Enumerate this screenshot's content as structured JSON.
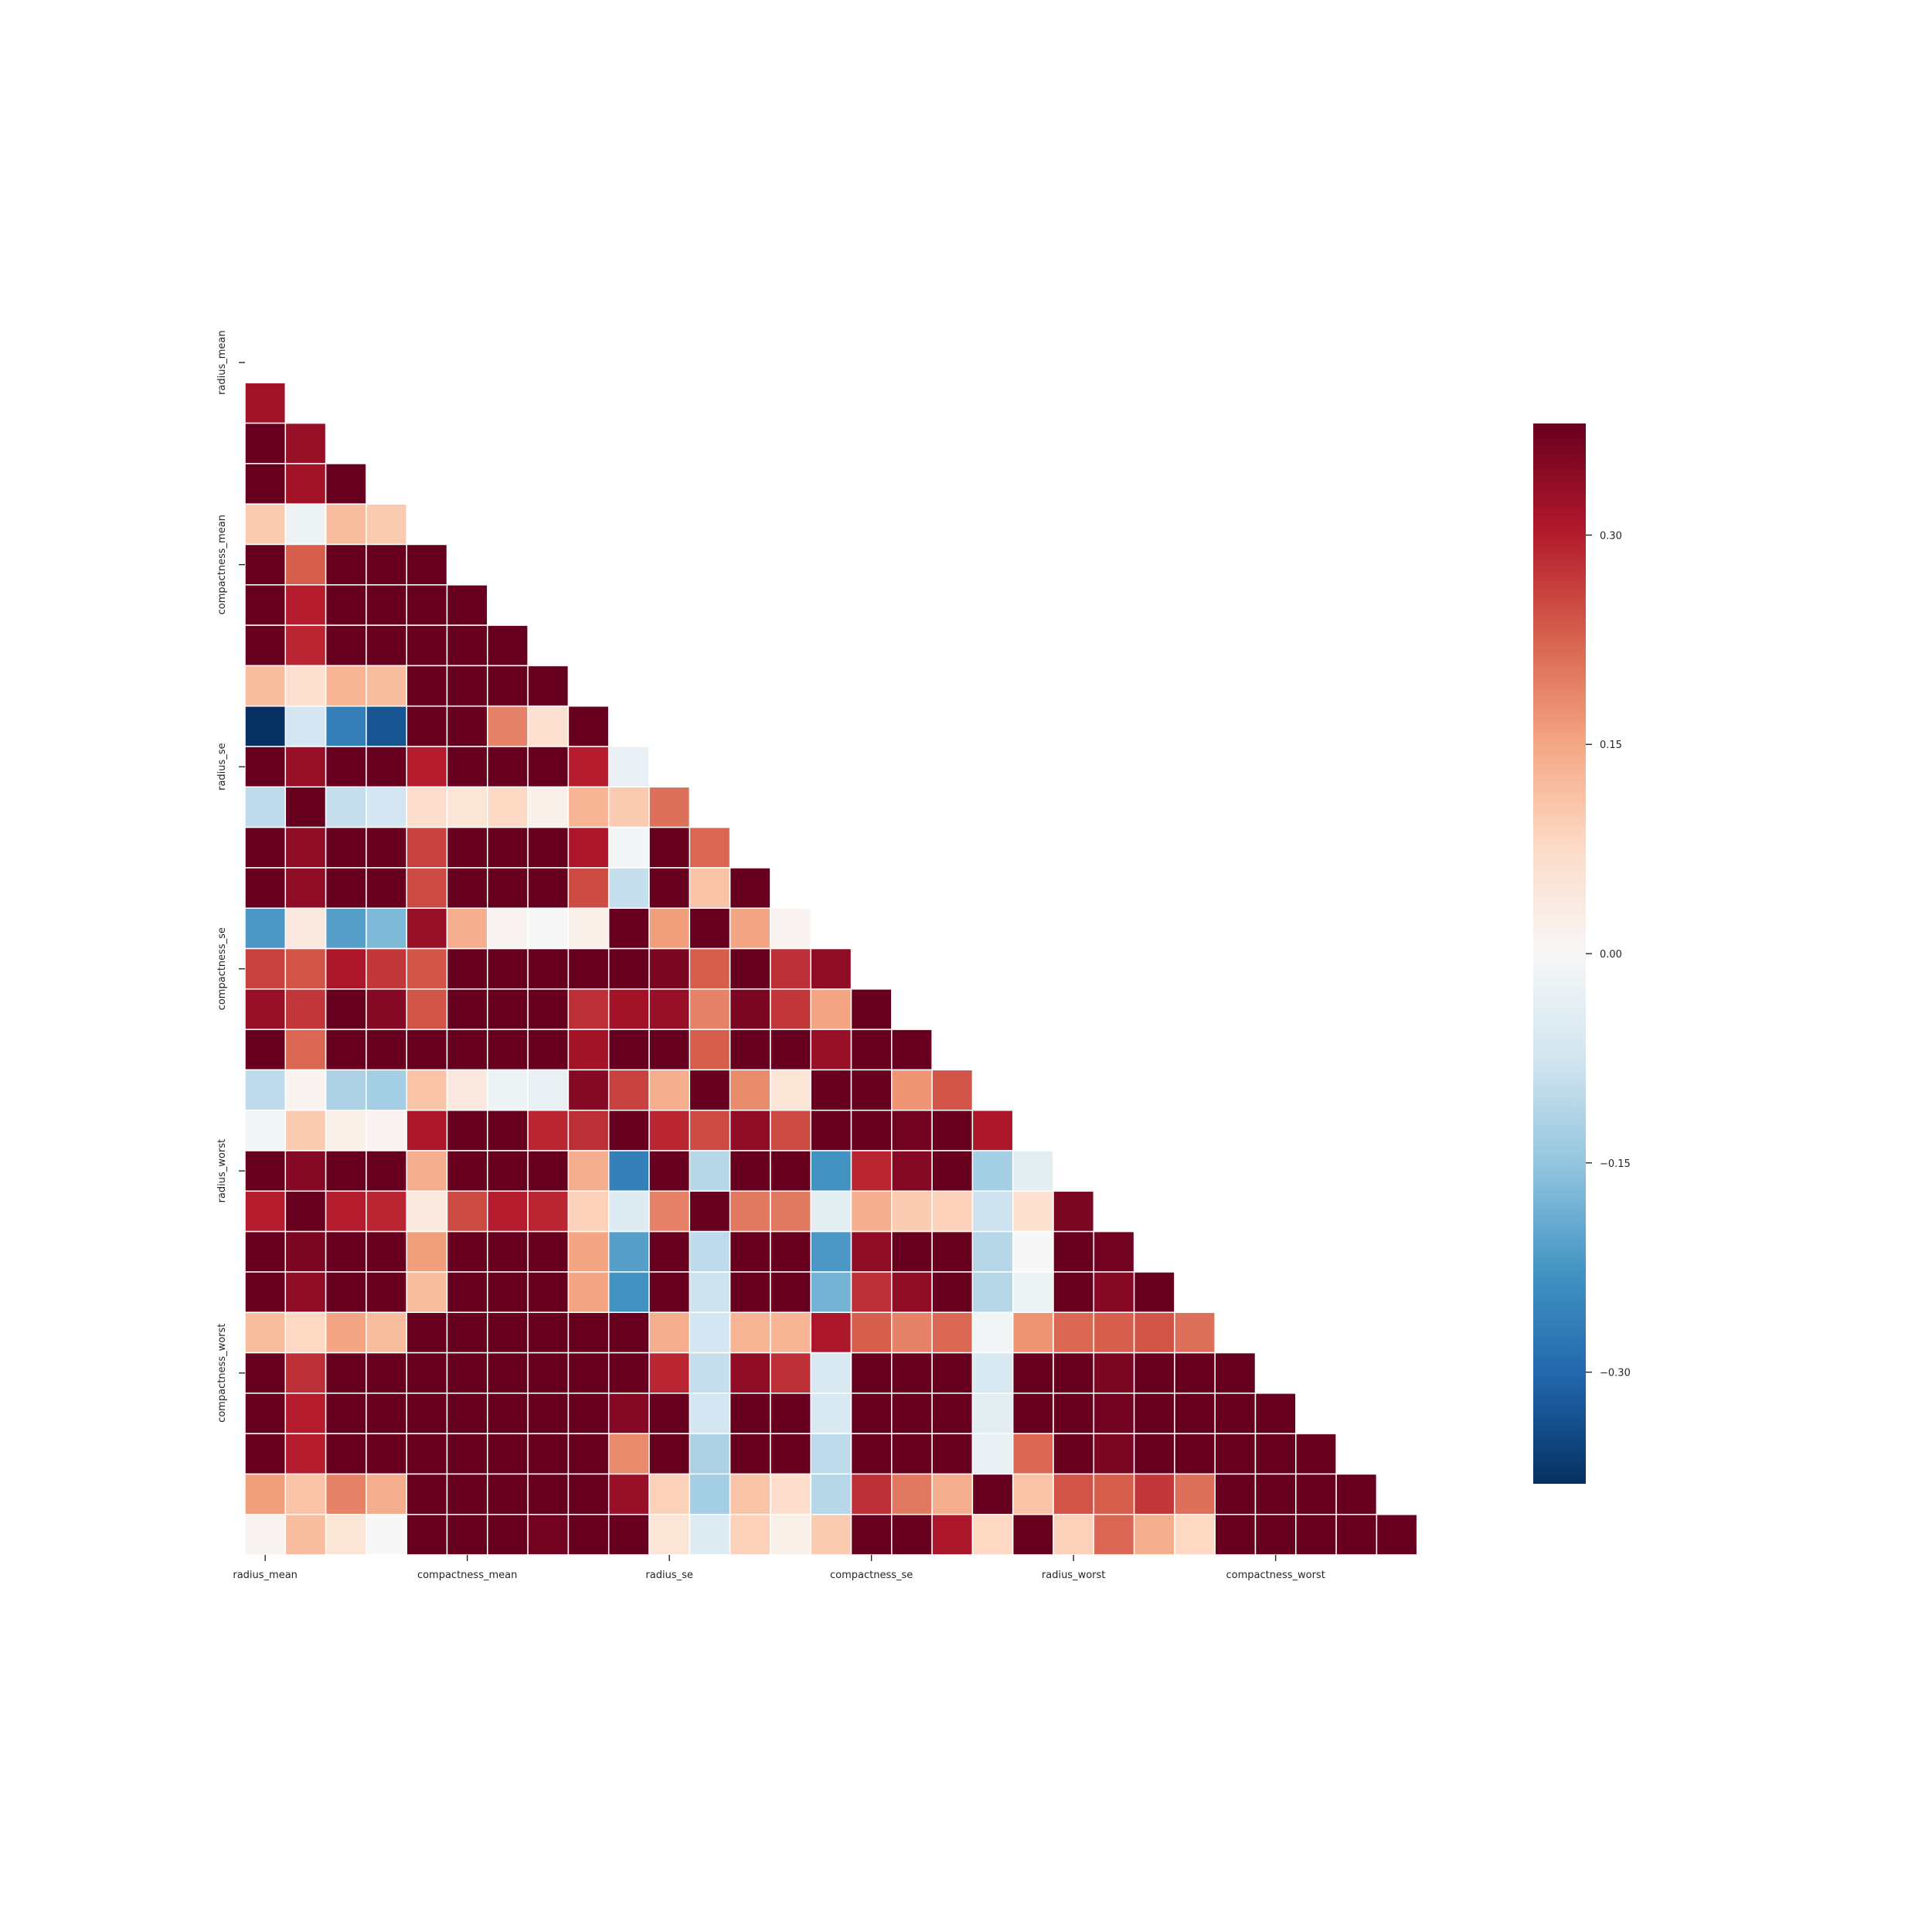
{
  "chart_data": {
    "type": "heatmap",
    "mask": "upper-triangle-including-diagonal",
    "x_tick_labels": [
      "radius_mean",
      "compactness_mean",
      "radius_se",
      "compactness_se",
      "radius_worst",
      "compactness_worst"
    ],
    "y_tick_labels": [
      "radius_mean",
      "compactness_mean",
      "radius_se",
      "compactness_se",
      "radius_worst",
      "compactness_worst"
    ],
    "tick_indices": [
      0,
      5,
      10,
      15,
      20,
      25
    ],
    "n": 30,
    "colormap": "RdBu_r",
    "vmin": -0.38,
    "vmax": 0.38,
    "colorbar": {
      "ticks": [
        0.3,
        0.15,
        0.0,
        -0.15,
        -0.3
      ],
      "tick_labels": [
        "0.30",
        "0.15",
        "0.00",
        "−0.15",
        "−0.30"
      ]
    },
    "matrix": [
      [],
      [
        0.32
      ],
      [
        1.0,
        0.33
      ],
      [
        0.99,
        0.32,
        0.99
      ],
      [
        0.1,
        -0.02,
        0.12,
        0.1
      ],
      [
        0.51,
        0.23,
        0.56,
        0.5,
        0.66
      ],
      [
        0.68,
        0.3,
        0.72,
        0.69,
        0.52,
        0.88
      ],
      [
        0.82,
        0.29,
        0.85,
        0.82,
        0.55,
        0.83,
        0.92
      ],
      [
        0.12,
        0.06,
        0.13,
        0.12,
        0.56,
        0.6,
        0.5,
        0.46
      ],
      [
        -0.4,
        -0.07,
        -0.26,
        -0.33,
        0.58,
        0.57,
        0.19,
        0.06,
        0.48
      ],
      [
        0.68,
        0.33,
        0.69,
        0.73,
        0.3,
        0.5,
        0.63,
        0.7,
        0.3,
        -0.03
      ],
      [
        -0.1,
        0.56,
        -0.09,
        -0.07,
        0.07,
        0.05,
        0.08,
        0.02,
        0.13,
        0.1,
        0.21
      ],
      [
        0.67,
        0.34,
        0.69,
        0.73,
        0.26,
        0.55,
        0.66,
        0.71,
        0.31,
        -0.01,
        0.97,
        0.22
      ],
      [
        0.74,
        0.34,
        0.74,
        0.8,
        0.25,
        0.46,
        0.62,
        0.69,
        0.25,
        -0.09,
        0.95,
        0.11,
        0.94
      ],
      [
        -0.22,
        0.04,
        -0.21,
        -0.17,
        0.33,
        0.14,
        0.01,
        0.0,
        0.02,
        0.4,
        0.16,
        0.4,
        0.15,
        0.01
      ],
      [
        0.26,
        0.24,
        0.31,
        0.27,
        0.24,
        0.74,
        0.67,
        0.49,
        0.42,
        0.56,
        0.36,
        0.23,
        0.42,
        0.28,
        0.34
      ],
      [
        0.33,
        0.27,
        0.38,
        0.35,
        0.24,
        0.57,
        0.69,
        0.44,
        0.28,
        0.32,
        0.33,
        0.19,
        0.36,
        0.27,
        0.15,
        0.8
      ],
      [
        0.55,
        0.22,
        0.56,
        0.55,
        0.38,
        0.64,
        0.68,
        0.62,
        0.32,
        0.48,
        0.51,
        0.23,
        0.56,
        0.42,
        0.33,
        0.74,
        0.77
      ],
      [
        -0.1,
        0.01,
        -0.12,
        -0.13,
        0.11,
        0.04,
        -0.02,
        -0.03,
        0.35,
        0.26,
        0.14,
        0.41,
        0.18,
        0.05,
        0.41,
        0.39,
        0.17,
        0.24
      ],
      [
        -0.01,
        0.1,
        0.02,
        0.01,
        0.31,
        0.59,
        0.45,
        0.29,
        0.28,
        0.38,
        0.29,
        0.25,
        0.34,
        0.25,
        0.4,
        0.64,
        0.37,
        0.4,
        0.31
      ],
      [
        0.97,
        0.35,
        0.97,
        0.96,
        0.14,
        0.54,
        0.69,
        0.83,
        0.14,
        -0.26,
        0.72,
        -0.11,
        0.7,
        0.76,
        -0.23,
        0.29,
        0.35,
        0.58,
        -0.13,
        -0.04
      ],
      [
        0.3,
        0.91,
        0.3,
        0.29,
        0.04,
        0.25,
        0.3,
        0.29,
        0.09,
        -0.05,
        0.19,
        0.41,
        0.2,
        0.2,
        -0.04,
        0.14,
        0.1,
        0.09,
        -0.08,
        0.06,
        0.36
      ],
      [
        0.97,
        0.36,
        0.97,
        0.96,
        0.16,
        0.59,
        0.73,
        0.86,
        0.15,
        -0.21,
        0.72,
        -0.1,
        0.72,
        0.76,
        -0.22,
        0.34,
        0.39,
        0.61,
        -0.11,
        -0.0,
        0.99,
        0.37
      ],
      [
        0.94,
        0.34,
        0.94,
        0.96,
        0.12,
        0.51,
        0.68,
        0.81,
        0.15,
        -0.23,
        0.75,
        -0.08,
        0.73,
        0.81,
        -0.18,
        0.28,
        0.34,
        0.56,
        -0.11,
        -0.02,
        0.98,
        0.35,
        0.98
      ],
      [
        0.12,
        0.08,
        0.15,
        0.12,
        0.81,
        0.57,
        0.45,
        0.45,
        0.43,
        0.5,
        0.14,
        -0.07,
        0.13,
        0.13,
        0.31,
        0.23,
        0.19,
        0.22,
        -0.01,
        0.17,
        0.22,
        0.23,
        0.24,
        0.21
      ],
      [
        0.41,
        0.28,
        0.46,
        0.39,
        0.47,
        0.87,
        0.75,
        0.67,
        0.47,
        0.46,
        0.29,
        -0.09,
        0.34,
        0.28,
        -0.06,
        0.68,
        0.48,
        0.45,
        -0.06,
        0.39,
        0.48,
        0.36,
        0.53,
        0.44,
        0.57
      ],
      [
        0.53,
        0.3,
        0.56,
        0.51,
        0.43,
        0.82,
        0.88,
        0.75,
        0.43,
        0.35,
        0.38,
        -0.07,
        0.42,
        0.39,
        -0.06,
        0.64,
        0.66,
        0.55,
        -0.04,
        0.38,
        0.57,
        0.37,
        0.62,
        0.54,
        0.52,
        0.89
      ],
      [
        0.74,
        0.3,
        0.77,
        0.72,
        0.5,
        0.82,
        0.86,
        0.91,
        0.43,
        0.18,
        0.53,
        -0.12,
        0.55,
        0.54,
        -0.1,
        0.48,
        0.44,
        0.6,
        -0.03,
        0.22,
        0.79,
        0.36,
        0.82,
        0.75,
        0.55,
        0.8,
        0.86
      ],
      [
        0.16,
        0.11,
        0.19,
        0.14,
        0.39,
        0.51,
        0.41,
        0.38,
        0.7,
        0.33,
        0.09,
        -0.13,
        0.11,
        0.07,
        -0.11,
        0.28,
        0.2,
        0.14,
        0.39,
        0.11,
        0.24,
        0.23,
        0.27,
        0.21,
        0.49,
        0.61,
        0.53,
        0.5
      ],
      [
        0.01,
        0.12,
        0.05,
        0.0,
        0.5,
        0.69,
        0.51,
        0.37,
        0.44,
        0.77,
        0.05,
        -0.05,
        0.09,
        0.02,
        0.1,
        0.59,
        0.44,
        0.31,
        0.08,
        0.59,
        0.09,
        0.22,
        0.14,
        0.08,
        0.62,
        0.81,
        0.69,
        0.51,
        0.54
      ]
    ]
  }
}
